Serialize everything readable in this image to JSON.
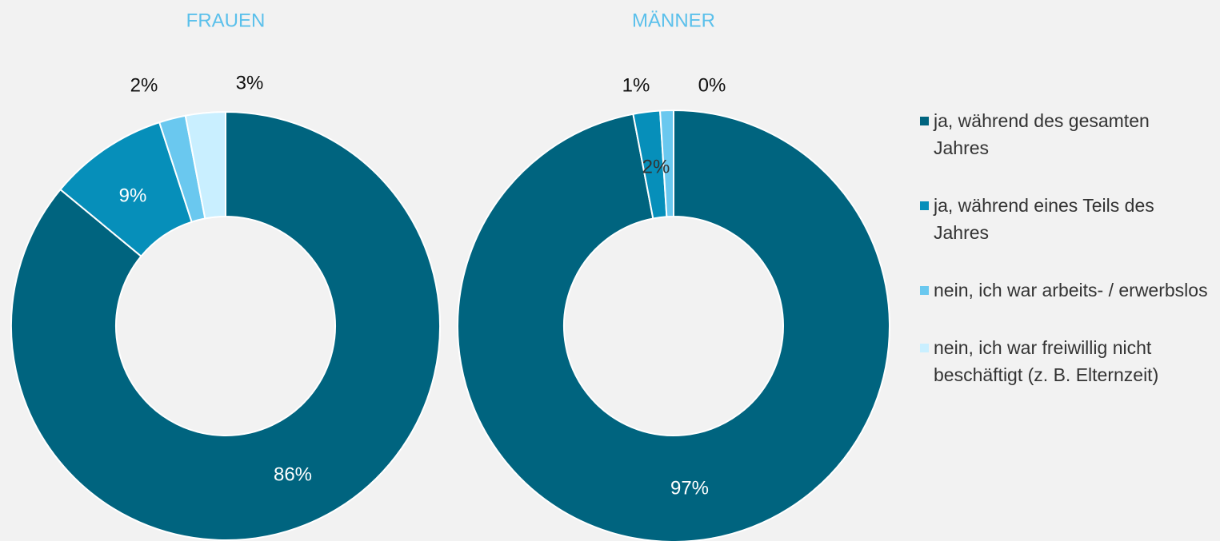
{
  "chart_data": [
    {
      "type": "donut",
      "title": "FRAUEN",
      "values": [
        86,
        9,
        2,
        3
      ],
      "value_labels": [
        "86%",
        "9%",
        "2%",
        "3%"
      ]
    },
    {
      "type": "donut",
      "title": "MÄNNER",
      "values": [
        97,
        2,
        1,
        0
      ],
      "value_labels": [
        "97%",
        "2%",
        "1%",
        "0%"
      ]
    }
  ],
  "legend": {
    "labels": [
      "ja, während des gesamten Jahres",
      "ja, während eines Teils des Jahres",
      "nein, ich war arbeits- / erwerbslos",
      "nein, ich war freiwillig nicht beschäftigt (z. B. Elternzeit)"
    ],
    "colors": [
      "#00647f",
      "#068fba",
      "#6ac8ef",
      "#c9efff"
    ]
  }
}
